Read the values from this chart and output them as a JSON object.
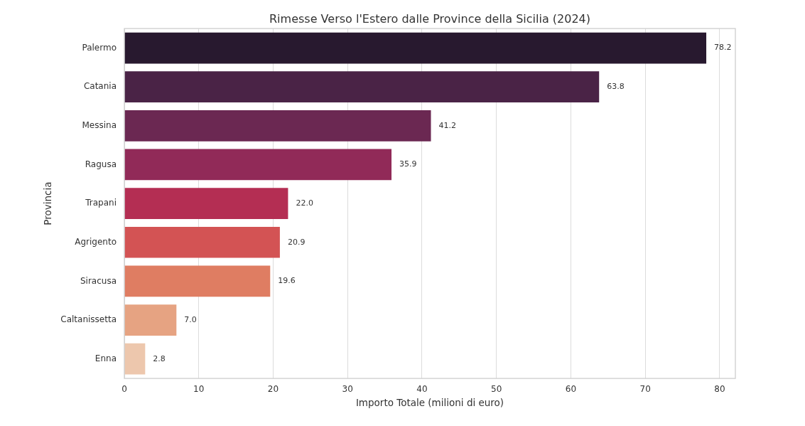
{
  "chart_data": {
    "type": "bar",
    "orientation": "horizontal",
    "title": "Rimesse Verso l'Estero dalle Province della Sicilia (2024)",
    "xlabel": "Importo Totale (milioni di euro)",
    "ylabel": "Provincia",
    "categories": [
      "Palermo",
      "Catania",
      "Messina",
      "Ragusa",
      "Trapani",
      "Agrigento",
      "Siracusa",
      "Caltanissetta",
      "Enna"
    ],
    "values": [
      78.2,
      63.8,
      41.2,
      35.9,
      22.0,
      20.9,
      19.6,
      7.0,
      2.8
    ],
    "value_labels": [
      "78.2",
      "63.8",
      "41.2",
      "35.9",
      "22.0",
      "20.9",
      "19.6",
      "7.0",
      "2.8"
    ],
    "colors": [
      "#28192f",
      "#4a2346",
      "#6b2852",
      "#912a58",
      "#b42e53",
      "#d35354",
      "#df7d62",
      "#e6a382",
      "#edc7ad"
    ],
    "xlim": [
      0,
      82.11
    ],
    "xticks": [
      0,
      10,
      20,
      30,
      40,
      50,
      60,
      70,
      80
    ],
    "grid": "x"
  }
}
